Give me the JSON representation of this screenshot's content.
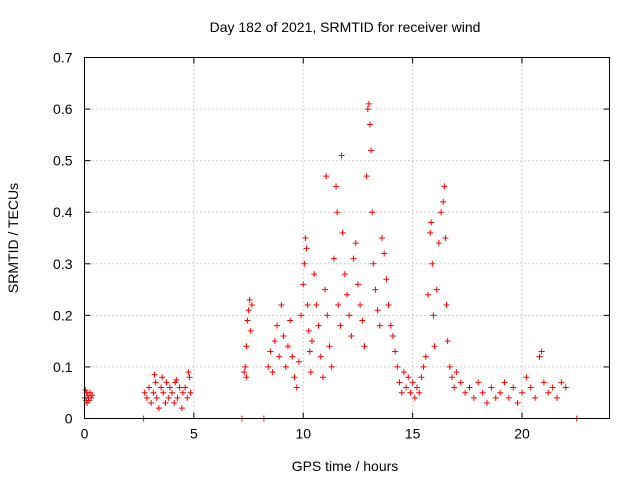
{
  "chart_data": {
    "type": "scatter",
    "title": "Day 182 of 2021, SRMTID for receiver wind",
    "xlabel": "GPS time / hours",
    "ylabel": "SRMTID / TECUs",
    "xlim": [
      0,
      24
    ],
    "ylim": [
      0,
      0.7
    ],
    "xticks": [
      0,
      5,
      10,
      15,
      20
    ],
    "yticks": [
      0,
      0.1,
      0.2,
      0.3,
      0.4,
      0.5,
      0.6,
      0.7
    ],
    "grid": true,
    "marker": "+",
    "series": [
      {
        "name": "SRMTID",
        "color": "#ff0000",
        "points": [
          [
            0.02,
            0.04
          ],
          [
            0.05,
            0.055
          ],
          [
            0.08,
            0.035
          ],
          [
            0.1,
            0.05
          ],
          [
            0.12,
            0.03
          ],
          [
            0.15,
            0.045
          ],
          [
            0.18,
            0.04
          ],
          [
            0.2,
            0.035
          ],
          [
            0.25,
            0.05
          ],
          [
            0.3,
            0.04
          ],
          [
            0.35,
            0.045
          ],
          [
            2.7,
            0.0
          ],
          [
            2.75,
            0.05
          ],
          [
            2.85,
            0.04
          ],
          [
            2.95,
            0.06
          ],
          [
            3.05,
            0.03
          ],
          [
            3.15,
            0.05
          ],
          [
            3.25,
            0.07
          ],
          [
            3.3,
            0.04
          ],
          [
            3.4,
            0.02
          ],
          [
            3.5,
            0.06
          ],
          [
            3.55,
            0.08
          ],
          [
            3.6,
            0.05
          ],
          [
            3.7,
            0.03
          ],
          [
            3.75,
            0.07
          ],
          [
            3.85,
            0.04
          ],
          [
            3.9,
            0.06
          ],
          [
            4.0,
            0.05
          ],
          [
            4.1,
            0.03
          ],
          [
            4.15,
            0.07
          ],
          [
            4.25,
            0.04
          ],
          [
            4.35,
            0.06
          ],
          [
            4.45,
            0.02
          ],
          [
            4.5,
            0.05
          ],
          [
            4.6,
            0.06
          ],
          [
            4.7,
            0.04
          ],
          [
            4.8,
            0.08
          ],
          [
            4.85,
            0.05
          ],
          [
            3.2,
            0.085
          ],
          [
            4.2,
            0.075
          ],
          [
            4.75,
            0.09
          ],
          [
            7.2,
            0.0
          ],
          [
            7.3,
            0.09
          ],
          [
            7.35,
            0.1
          ],
          [
            7.4,
            0.14
          ],
          [
            7.45,
            0.19
          ],
          [
            7.5,
            0.21
          ],
          [
            7.55,
            0.23
          ],
          [
            7.6,
            0.17
          ],
          [
            7.65,
            0.22
          ],
          [
            7.4,
            0.08
          ],
          [
            8.2,
            0.0
          ],
          [
            8.4,
            0.1
          ],
          [
            8.5,
            0.13
          ],
          [
            8.6,
            0.09
          ],
          [
            8.7,
            0.15
          ],
          [
            8.8,
            0.18
          ],
          [
            8.9,
            0.12
          ],
          [
            9.0,
            0.22
          ],
          [
            9.1,
            0.16
          ],
          [
            9.2,
            0.1
          ],
          [
            9.3,
            0.14
          ],
          [
            9.4,
            0.19
          ],
          [
            9.5,
            0.12
          ],
          [
            9.6,
            0.08
          ],
          [
            9.7,
            0.06
          ],
          [
            9.8,
            0.11
          ],
          [
            9.9,
            0.2
          ],
          [
            10.0,
            0.26
          ],
          [
            10.05,
            0.3
          ],
          [
            10.1,
            0.35
          ],
          [
            10.15,
            0.33
          ],
          [
            10.2,
            0.22
          ],
          [
            10.25,
            0.17
          ],
          [
            10.3,
            0.13
          ],
          [
            10.35,
            0.09
          ],
          [
            10.4,
            0.15
          ],
          [
            10.5,
            0.28
          ],
          [
            10.6,
            0.22
          ],
          [
            10.7,
            0.18
          ],
          [
            10.8,
            0.12
          ],
          [
            10.9,
            0.08
          ],
          [
            11.0,
            0.25
          ],
          [
            11.05,
            0.47
          ],
          [
            11.1,
            0.2
          ],
          [
            11.2,
            0.14
          ],
          [
            11.3,
            0.1
          ],
          [
            11.4,
            0.31
          ],
          [
            11.5,
            0.45
          ],
          [
            11.55,
            0.4
          ],
          [
            11.6,
            0.22
          ],
          [
            11.7,
            0.18
          ],
          [
            11.75,
            0.51
          ],
          [
            11.8,
            0.36
          ],
          [
            11.9,
            0.28
          ],
          [
            12.0,
            0.24
          ],
          [
            12.1,
            0.2
          ],
          [
            12.2,
            0.16
          ],
          [
            12.3,
            0.31
          ],
          [
            12.4,
            0.34
          ],
          [
            12.5,
            0.26
          ],
          [
            12.6,
            0.22
          ],
          [
            12.7,
            0.19
          ],
          [
            12.8,
            0.14
          ],
          [
            12.9,
            0.47
          ],
          [
            12.95,
            0.6
          ],
          [
            13.0,
            0.61
          ],
          [
            13.05,
            0.57
          ],
          [
            13.1,
            0.52
          ],
          [
            13.15,
            0.4
          ],
          [
            13.2,
            0.3
          ],
          [
            13.3,
            0.25
          ],
          [
            13.4,
            0.21
          ],
          [
            13.5,
            0.18
          ],
          [
            13.6,
            0.35
          ],
          [
            13.7,
            0.32
          ],
          [
            13.8,
            0.27
          ],
          [
            13.9,
            0.22
          ],
          [
            14.0,
            0.18
          ],
          [
            14.1,
            0.16
          ],
          [
            14.2,
            0.13
          ],
          [
            14.3,
            0.1
          ],
          [
            14.4,
            0.07
          ],
          [
            14.5,
            0.05
          ],
          [
            14.6,
            0.09
          ],
          [
            14.7,
            0.06
          ],
          [
            14.8,
            0.08
          ],
          [
            14.9,
            0.05
          ],
          [
            15.0,
            0.07
          ],
          [
            15.1,
            0.04
          ],
          [
            15.2,
            0.06
          ],
          [
            15.3,
            0.05
          ],
          [
            15.4,
            0.08
          ],
          [
            15.5,
            0.1
          ],
          [
            15.6,
            0.12
          ],
          [
            15.7,
            0.24
          ],
          [
            15.8,
            0.36
          ],
          [
            15.85,
            0.38
          ],
          [
            15.9,
            0.3
          ],
          [
            15.95,
            0.2
          ],
          [
            16.0,
            0.14
          ],
          [
            16.1,
            0.25
          ],
          [
            16.2,
            0.34
          ],
          [
            16.3,
            0.4
          ],
          [
            16.4,
            0.42
          ],
          [
            16.45,
            0.45
          ],
          [
            16.5,
            0.35
          ],
          [
            16.55,
            0.22
          ],
          [
            16.6,
            0.15
          ],
          [
            16.7,
            0.1
          ],
          [
            16.8,
            0.08
          ],
          [
            16.9,
            0.06
          ],
          [
            17.0,
            0.09
          ],
          [
            17.2,
            0.07
          ],
          [
            17.4,
            0.05
          ],
          [
            17.6,
            0.06
          ],
          [
            17.8,
            0.04
          ],
          [
            18.0,
            0.07
          ],
          [
            18.2,
            0.05
          ],
          [
            18.4,
            0.03
          ],
          [
            18.6,
            0.06
          ],
          [
            18.8,
            0.04
          ],
          [
            19.0,
            0.05
          ],
          [
            19.2,
            0.07
          ],
          [
            19.4,
            0.04
          ],
          [
            19.6,
            0.06
          ],
          [
            19.8,
            0.03
          ],
          [
            20.0,
            0.05
          ],
          [
            20.2,
            0.08
          ],
          [
            20.4,
            0.06
          ],
          [
            20.6,
            0.04
          ],
          [
            20.8,
            0.12
          ],
          [
            20.9,
            0.13
          ],
          [
            21.0,
            0.07
          ],
          [
            21.2,
            0.05
          ],
          [
            21.4,
            0.06
          ],
          [
            21.6,
            0.04
          ],
          [
            21.8,
            0.07
          ],
          [
            22.0,
            0.06
          ],
          [
            22.5,
            0.0
          ]
        ]
      }
    ]
  }
}
